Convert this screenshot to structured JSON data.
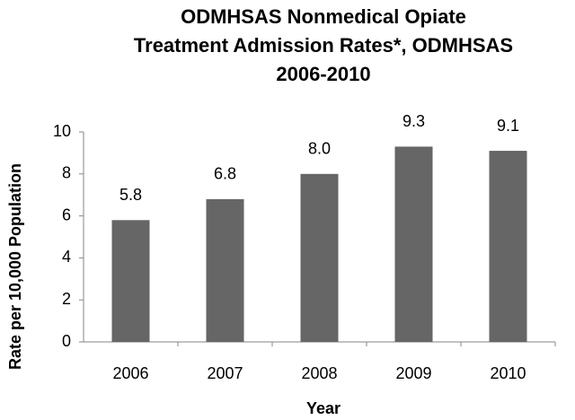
{
  "chart_data": {
    "type": "bar",
    "title": [
      "ODMHSAS Nonmedical Opiate",
      "Treatment Admission Rates*, ODMHSAS",
      "2006-2010"
    ],
    "x_label": "Year",
    "y_label": "Rate per 10,000 Population",
    "categories": [
      "2006",
      "2007",
      "2008",
      "2009",
      "2010"
    ],
    "values": [
      5.8,
      6.8,
      8.0,
      9.3,
      9.1
    ],
    "value_labels": [
      "5.8",
      "6.8",
      "8.0",
      "9.3",
      "9.1"
    ],
    "color": "#666666",
    "ylim": [
      0,
      10
    ],
    "yticks": [
      0,
      2,
      4,
      6,
      8,
      10
    ],
    "grid": false
  }
}
